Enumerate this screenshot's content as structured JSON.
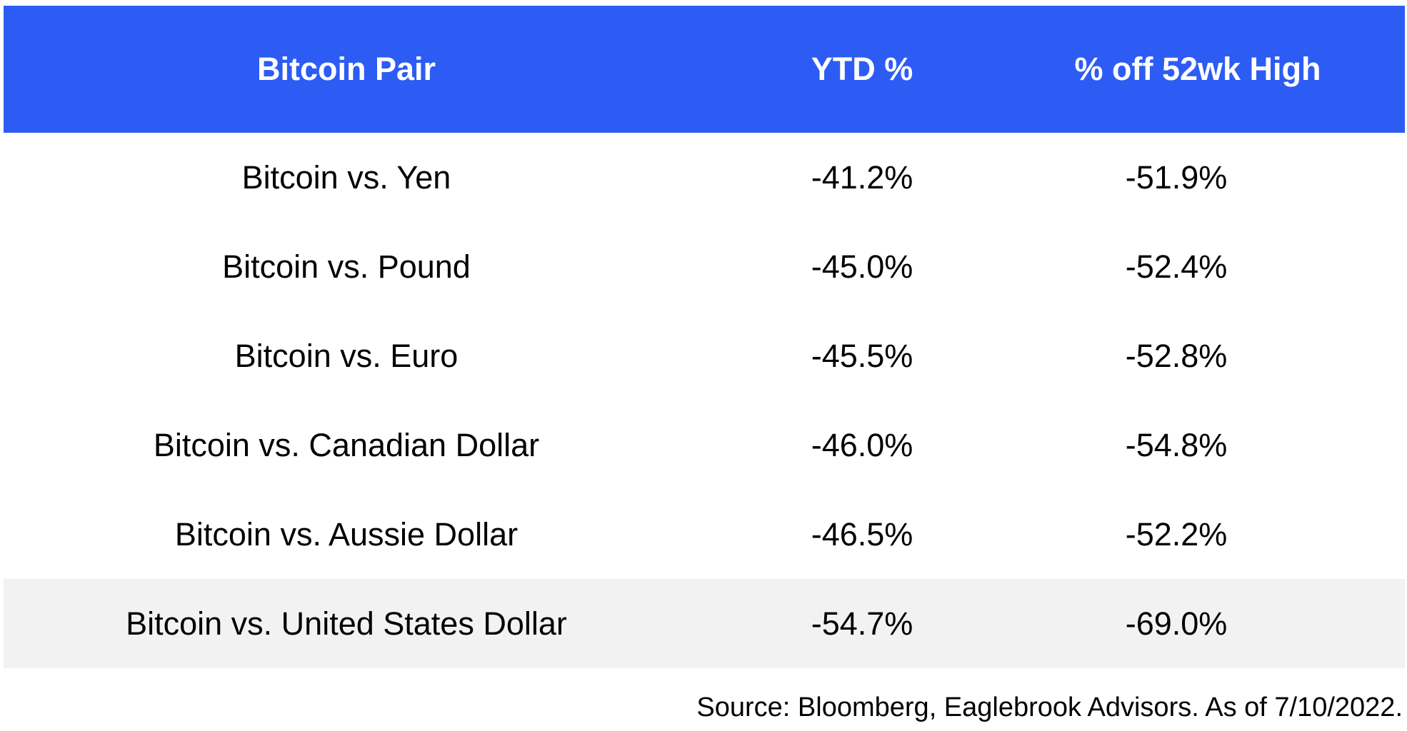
{
  "table": {
    "headers": [
      "Bitcoin Pair",
      "YTD %",
      "% off 52wk High"
    ],
    "rows": [
      {
        "pair": "Bitcoin vs. Yen",
        "ytd": "-41.2%",
        "off_high": "-51.9%"
      },
      {
        "pair": "Bitcoin vs. Pound",
        "ytd": "-45.0%",
        "off_high": "-52.4%"
      },
      {
        "pair": "Bitcoin vs. Euro",
        "ytd": "-45.5%",
        "off_high": "-52.8%"
      },
      {
        "pair": "Bitcoin vs. Canadian Dollar",
        "ytd": "-46.0%",
        "off_high": "-54.8%"
      },
      {
        "pair": "Bitcoin vs. Aussie Dollar",
        "ytd": "-46.5%",
        "off_high": "-52.2%"
      },
      {
        "pair": "Bitcoin vs. United States Dollar",
        "ytd": "-54.7%",
        "off_high": "-69.0%"
      }
    ]
  },
  "footnote": "Source: Bloomberg, Eaglebrook Advisors. As of 7/10/2022.",
  "colors": {
    "header_bg": "#2d5cf5",
    "header_text": "#ffffff",
    "highlight_row_bg": "#f2f2f2"
  }
}
